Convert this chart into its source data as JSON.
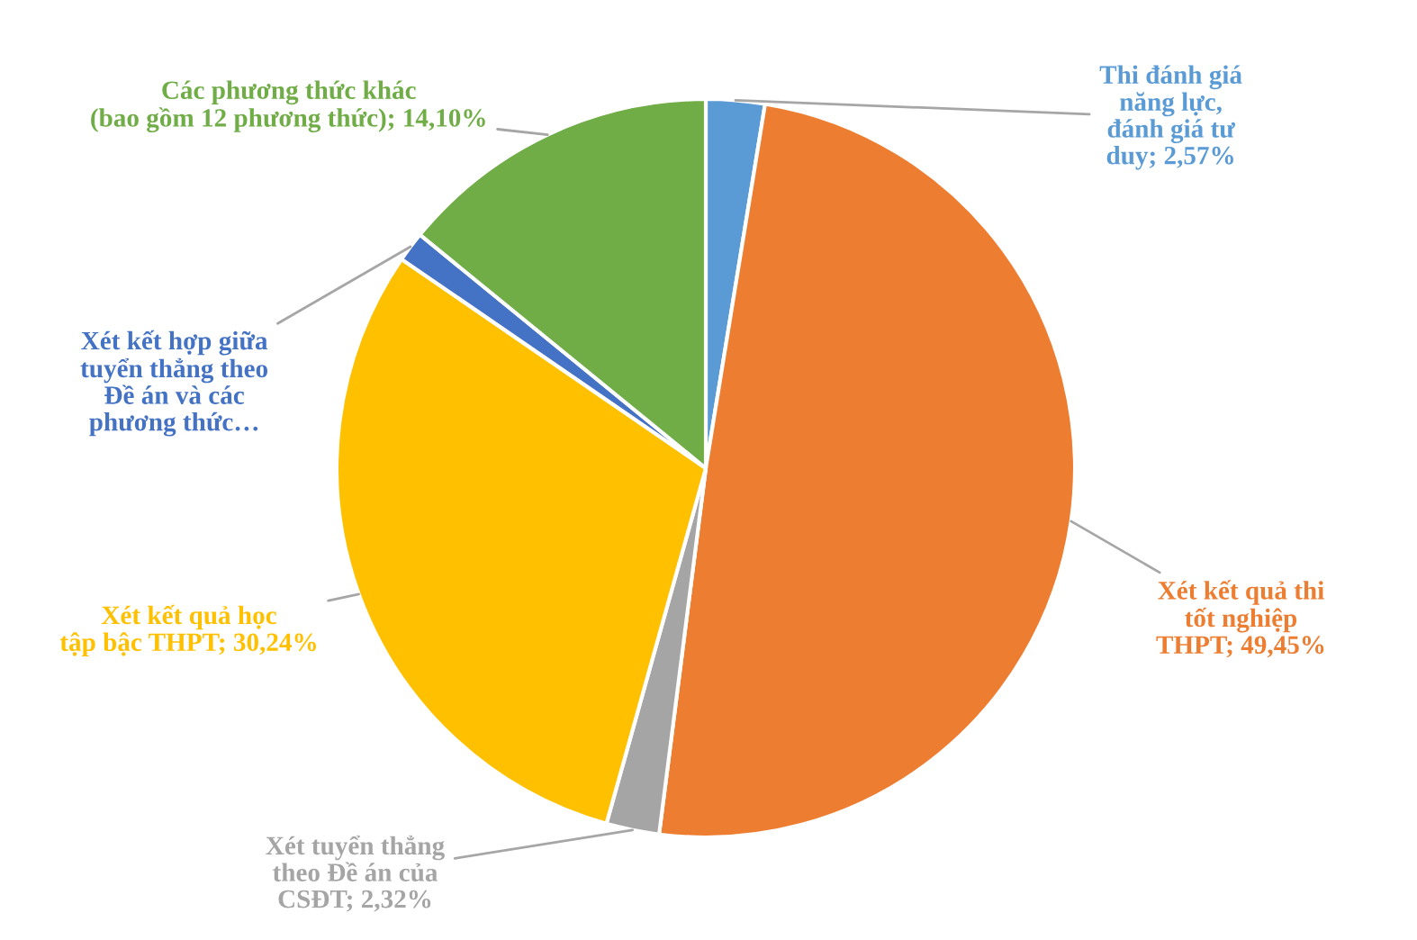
{
  "chart_data": {
    "type": "pie",
    "categories": [
      "Thi đánh giá\nnăng lực,\nđánh giá tư\nduy",
      "Xét kết quả thi\ntốt nghiệp\nTHPT",
      "Xét tuyển thẳng\ntheo Đề án của\nCSĐT",
      "Xét kết quả học\ntập bậc THPT",
      "Xét kết hợp giữa\ntuyển thẳng theo\nĐề án và các\nphương thức…",
      "Các phương thức khác\n(bao gồm 12 phương thức)"
    ],
    "values": [
      2.57,
      49.45,
      2.32,
      30.24,
      1.32,
      14.1
    ],
    "value_labels": [
      "2,57%",
      "49,45%",
      "2,32%",
      "30,24%",
      null,
      "14,10%"
    ],
    "colors": [
      "#5b9bd5",
      "#ed7d31",
      "#a5a5a5",
      "#ffc000",
      "#4472c4",
      "#70ad47"
    ]
  }
}
